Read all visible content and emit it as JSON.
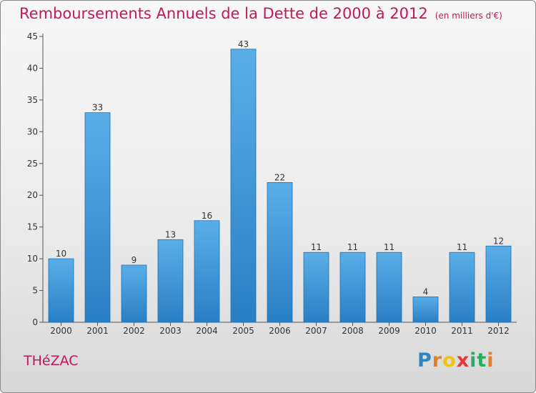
{
  "header": {
    "title": "Remboursements Annuels de la Dette de 2000 à 2012",
    "unit": "(en milliers d'€)"
  },
  "footer": {
    "town": "THéZAC",
    "logo_letters": [
      "P",
      "r",
      "o",
      "x",
      "i",
      "t",
      "i"
    ],
    "logo_colors": [
      "#2e86c1",
      "#e67e22",
      "#f1c40f",
      "#e53935",
      "#27ae60",
      "#27ae60",
      "#e67e22"
    ]
  },
  "colors": {
    "bar_top": "#5aaee8",
    "bar_bottom": "#2a7fc4",
    "bar_border": "#1d6fb0",
    "text": "#333333",
    "accent": "#c2185b"
  },
  "chart_data": {
    "type": "bar",
    "title": "Remboursements Annuels de la Dette de 2000 à 2012",
    "unit": "(en milliers d'€)",
    "categories": [
      "2000",
      "2001",
      "2002",
      "2003",
      "2004",
      "2005",
      "2006",
      "2007",
      "2008",
      "2009",
      "2010",
      "2011",
      "2012"
    ],
    "values": [
      10,
      33,
      9,
      13,
      16,
      43,
      22,
      11,
      11,
      11,
      4,
      11,
      12
    ],
    "ylim": [
      0,
      45
    ],
    "yticks": [
      0,
      5,
      10,
      15,
      20,
      25,
      30,
      35,
      40,
      45
    ],
    "grid": false,
    "legend": "none"
  }
}
